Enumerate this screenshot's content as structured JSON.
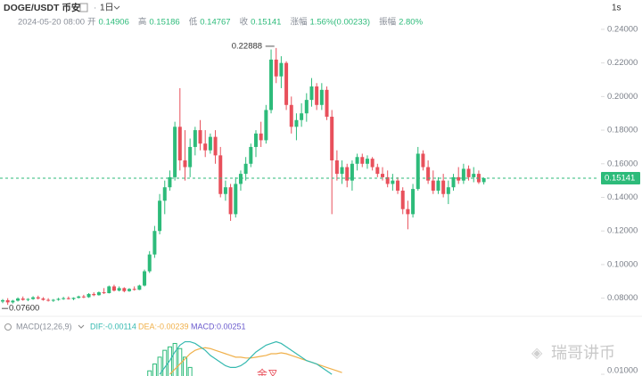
{
  "chart_data": {
    "type": "candlestick",
    "pair": "DOGE/USDT 币安",
    "interval": "1日",
    "speed": "1s",
    "date": "2024-05-20 08:00",
    "summary": [
      {
        "label": "开",
        "value": "0.14906"
      },
      {
        "label": "高",
        "value": "0.15186"
      },
      {
        "label": "低",
        "value": "0.14767"
      },
      {
        "label": "收",
        "value": "0.15141"
      },
      {
        "label": "涨幅",
        "value": "1.56%(0.00233)"
      },
      {
        "label": "振幅",
        "value": "2.80%"
      }
    ],
    "up_color": "#2dbb7a",
    "down_color": "#e8505b",
    "ylim": [
      0.0708,
      0.2458
    ],
    "yticks": [
      {
        "value": 0.08,
        "label": "0.08000"
      },
      {
        "value": 0.1,
        "label": "0.10000"
      },
      {
        "value": 0.12,
        "label": "0.12000"
      },
      {
        "value": 0.14,
        "label": "0.14000"
      },
      {
        "value": 0.16,
        "label": "0.16000"
      },
      {
        "value": 0.18,
        "label": "0.18000"
      },
      {
        "value": 0.2,
        "label": "0.20000"
      },
      {
        "value": 0.22,
        "label": "0.22000"
      },
      {
        "value": 0.24,
        "label": "0.24000"
      }
    ],
    "current_price": 0.15141,
    "high_annotation": 0.22888,
    "low_annotation": {
      "value": 0.076,
      "label": "0.07600"
    },
    "ohlc": [
      [
        0.078,
        0.0795,
        0.077,
        0.0788
      ],
      [
        0.0788,
        0.08,
        0.076,
        0.0775
      ],
      [
        0.0775,
        0.079,
        0.0768,
        0.0785
      ],
      [
        0.0785,
        0.0805,
        0.078,
        0.0798
      ],
      [
        0.0798,
        0.081,
        0.0785,
        0.079
      ],
      [
        0.079,
        0.08,
        0.0782,
        0.0795
      ],
      [
        0.0795,
        0.0812,
        0.079,
        0.0805
      ],
      [
        0.0805,
        0.0815,
        0.0792,
        0.0798
      ],
      [
        0.0798,
        0.0806,
        0.0785,
        0.079
      ],
      [
        0.079,
        0.08,
        0.078,
        0.0786
      ],
      [
        0.0786,
        0.0795,
        0.0778,
        0.079
      ],
      [
        0.079,
        0.0802,
        0.0785,
        0.0796
      ],
      [
        0.0796,
        0.0808,
        0.079,
        0.08
      ],
      [
        0.08,
        0.081,
        0.0792,
        0.0795
      ],
      [
        0.0795,
        0.0805,
        0.0788,
        0.0802
      ],
      [
        0.0802,
        0.0815,
        0.0798,
        0.081
      ],
      [
        0.081,
        0.082,
        0.08,
        0.0806
      ],
      [
        0.0806,
        0.083,
        0.0802,
        0.0825
      ],
      [
        0.0825,
        0.0835,
        0.0812,
        0.0818
      ],
      [
        0.0818,
        0.084,
        0.0815,
        0.0835
      ],
      [
        0.0835,
        0.086,
        0.0825,
        0.083
      ],
      [
        0.083,
        0.0875,
        0.0828,
        0.087
      ],
      [
        0.087,
        0.088,
        0.084,
        0.0845
      ],
      [
        0.0845,
        0.087,
        0.084,
        0.086
      ],
      [
        0.086,
        0.0865,
        0.0835,
        0.0842
      ],
      [
        0.0842,
        0.086,
        0.0838,
        0.0855
      ],
      [
        0.0855,
        0.087,
        0.0845,
        0.085
      ],
      [
        0.085,
        0.088,
        0.0848,
        0.0875
      ],
      [
        0.0875,
        0.097,
        0.087,
        0.096
      ],
      [
        0.096,
        0.108,
        0.095,
        0.106
      ],
      [
        0.106,
        0.123,
        0.104,
        0.12
      ],
      [
        0.12,
        0.142,
        0.118,
        0.138
      ],
      [
        0.138,
        0.15,
        0.13,
        0.146
      ],
      [
        0.146,
        0.156,
        0.144,
        0.152
      ],
      [
        0.152,
        0.185,
        0.15,
        0.182
      ],
      [
        0.182,
        0.205,
        0.156,
        0.162
      ],
      [
        0.162,
        0.18,
        0.15,
        0.158
      ],
      [
        0.158,
        0.175,
        0.152,
        0.17
      ],
      [
        0.17,
        0.182,
        0.165,
        0.18
      ],
      [
        0.18,
        0.186,
        0.168,
        0.172
      ],
      [
        0.172,
        0.18,
        0.164,
        0.168
      ],
      [
        0.168,
        0.178,
        0.166,
        0.176
      ],
      [
        0.176,
        0.18,
        0.16,
        0.165
      ],
      [
        0.165,
        0.17,
        0.14,
        0.142
      ],
      [
        0.142,
        0.15,
        0.138,
        0.146
      ],
      [
        0.146,
        0.148,
        0.126,
        0.13
      ],
      [
        0.13,
        0.152,
        0.128,
        0.148
      ],
      [
        0.148,
        0.156,
        0.144,
        0.154
      ],
      [
        0.154,
        0.164,
        0.15,
        0.16
      ],
      [
        0.16,
        0.172,
        0.158,
        0.17
      ],
      [
        0.17,
        0.18,
        0.164,
        0.178
      ],
      [
        0.178,
        0.185,
        0.17,
        0.174
      ],
      [
        0.174,
        0.195,
        0.172,
        0.192
      ],
      [
        0.192,
        0.228,
        0.19,
        0.222
      ],
      [
        0.222,
        0.22888,
        0.208,
        0.212
      ],
      [
        0.212,
        0.224,
        0.205,
        0.22
      ],
      [
        0.22,
        0.221,
        0.192,
        0.195
      ],
      [
        0.195,
        0.2,
        0.178,
        0.182
      ],
      [
        0.182,
        0.19,
        0.174,
        0.186
      ],
      [
        0.186,
        0.196,
        0.182,
        0.19
      ],
      [
        0.19,
        0.202,
        0.185,
        0.198
      ],
      [
        0.198,
        0.211,
        0.194,
        0.206
      ],
      [
        0.206,
        0.208,
        0.192,
        0.195
      ],
      [
        0.195,
        0.208,
        0.192,
        0.204
      ],
      [
        0.204,
        0.206,
        0.186,
        0.188
      ],
      [
        0.188,
        0.192,
        0.13,
        0.162
      ],
      [
        0.162,
        0.168,
        0.15,
        0.154
      ],
      [
        0.154,
        0.162,
        0.148,
        0.158
      ],
      [
        0.158,
        0.16,
        0.146,
        0.15
      ],
      [
        0.15,
        0.162,
        0.144,
        0.16
      ],
      [
        0.16,
        0.166,
        0.156,
        0.164
      ],
      [
        0.164,
        0.166,
        0.158,
        0.16
      ],
      [
        0.16,
        0.165,
        0.157,
        0.163
      ],
      [
        0.163,
        0.164,
        0.156,
        0.158
      ],
      [
        0.158,
        0.16,
        0.152,
        0.154
      ],
      [
        0.154,
        0.158,
        0.15,
        0.152
      ],
      [
        0.152,
        0.156,
        0.146,
        0.148
      ],
      [
        0.148,
        0.154,
        0.144,
        0.15
      ],
      [
        0.15,
        0.152,
        0.142,
        0.144
      ],
      [
        0.144,
        0.146,
        0.13,
        0.133
      ],
      [
        0.133,
        0.138,
        0.121,
        0.13
      ],
      [
        0.13,
        0.148,
        0.128,
        0.145
      ],
      [
        0.145,
        0.17,
        0.144,
        0.166
      ],
      [
        0.166,
        0.168,
        0.156,
        0.158
      ],
      [
        0.158,
        0.162,
        0.148,
        0.15
      ],
      [
        0.15,
        0.156,
        0.142,
        0.144
      ],
      [
        0.144,
        0.152,
        0.142,
        0.15
      ],
      [
        0.15,
        0.154,
        0.14,
        0.142
      ],
      [
        0.142,
        0.15,
        0.136,
        0.146
      ],
      [
        0.146,
        0.154,
        0.144,
        0.152
      ],
      [
        0.152,
        0.158,
        0.148,
        0.15
      ],
      [
        0.15,
        0.16,
        0.148,
        0.157
      ],
      [
        0.157,
        0.159,
        0.15,
        0.152
      ],
      [
        0.152,
        0.158,
        0.149,
        0.154
      ],
      [
        0.154,
        0.156,
        0.148,
        0.149
      ],
      [
        0.14906,
        0.15186,
        0.14767,
        0.15141
      ]
    ],
    "macd": {
      "title": "MACD(12,26,9)",
      "dif_label": "DIF:-0.00114",
      "dea_label": "DEA:-0.00239",
      "macd_label": "MACD:0.00251",
      "dif_color": "#35b9b0",
      "dea_color": "#f0b04a",
      "hist_color": "#2dbb7a",
      "y2lim": [
        0.009,
        0.035
      ],
      "y2ticks": [
        {
          "value": 0.01,
          "label": "0.01000"
        }
      ],
      "annotation": "金叉",
      "dif": [
        null,
        null,
        null,
        null,
        null,
        null,
        null,
        null,
        null,
        null,
        null,
        null,
        null,
        null,
        null,
        null,
        null,
        null,
        null,
        null,
        null,
        null,
        null,
        null,
        null,
        null,
        null,
        null,
        null,
        null,
        null,
        0.01,
        0.014,
        0.018,
        0.023,
        0.027,
        0.029,
        0.029,
        0.028,
        0.026,
        0.024,
        0.021,
        0.019,
        0.017,
        0.015,
        0.014,
        0.014,
        0.015,
        0.017,
        0.02,
        0.023,
        0.025,
        0.027,
        0.028,
        0.029,
        0.028,
        0.026,
        0.024,
        0.022,
        0.02,
        0.018,
        0.017,
        0.016,
        0.014,
        0.012,
        0.01,
        null,
        null,
        null,
        null,
        null,
        null,
        null,
        null,
        null,
        null,
        null,
        null,
        null,
        null,
        null,
        null,
        null,
        null,
        null,
        null,
        null,
        null,
        null,
        null,
        null,
        null,
        null,
        null,
        null,
        null
      ],
      "dea": [
        null,
        null,
        null,
        null,
        null,
        null,
        null,
        null,
        null,
        null,
        null,
        null,
        null,
        null,
        null,
        null,
        null,
        null,
        null,
        null,
        null,
        null,
        null,
        null,
        null,
        null,
        null,
        null,
        null,
        null,
        null,
        null,
        null,
        0.01,
        0.013,
        0.016,
        0.019,
        0.022,
        0.024,
        0.025,
        0.0255,
        0.025,
        0.024,
        0.023,
        0.022,
        0.021,
        0.02,
        0.02,
        0.0195,
        0.0195,
        0.02,
        0.0205,
        0.021,
        0.022,
        0.022,
        0.0225,
        0.022,
        0.021,
        0.02,
        0.019,
        0.018,
        0.017,
        0.016,
        0.015,
        0.014,
        0.013,
        0.012,
        0.011,
        null,
        null,
        null,
        null,
        null,
        null,
        null,
        null,
        null,
        null,
        null,
        null,
        null,
        null,
        null,
        null,
        null,
        null,
        null,
        null,
        null,
        null,
        null,
        null,
        null,
        null,
        null,
        null
      ],
      "hist": [
        null,
        null,
        null,
        null,
        null,
        null,
        null,
        null,
        null,
        null,
        null,
        null,
        null,
        null,
        null,
        null,
        null,
        null,
        null,
        null,
        null,
        null,
        null,
        null,
        null,
        null,
        null,
        null,
        null,
        0.012,
        0.016,
        0.02,
        0.024,
        0.026,
        0.028,
        0.025,
        0.02,
        0.014,
        null,
        null,
        null,
        null,
        null,
        null,
        null,
        null,
        null,
        null,
        null,
        null,
        null,
        null,
        null,
        null,
        null,
        null,
        null,
        null,
        null,
        null,
        null,
        null,
        null,
        null,
        null,
        null,
        null,
        null,
        null,
        null,
        null,
        null,
        null,
        null,
        null,
        null,
        null,
        null,
        null,
        null,
        null,
        null,
        null,
        null,
        null,
        null,
        null,
        null,
        null,
        null,
        null,
        null,
        null,
        null,
        null,
        null
      ]
    },
    "watermark": "瑞哥讲币"
  }
}
